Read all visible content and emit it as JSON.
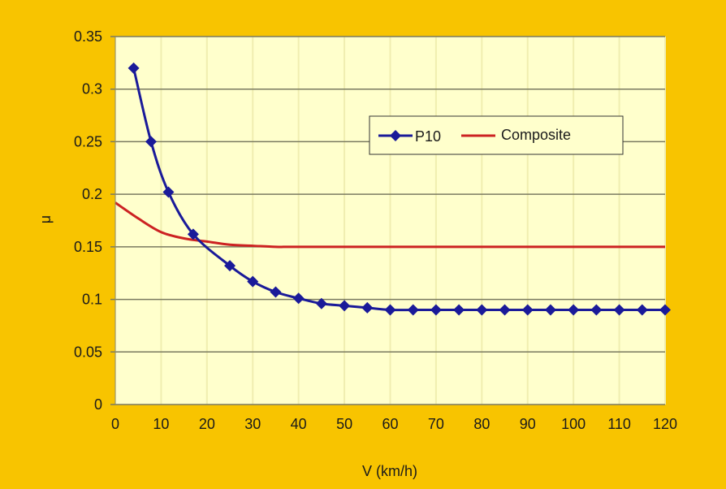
{
  "chart_data": {
    "type": "line",
    "title": "",
    "xlabel": "V (km/h)",
    "ylabel": "μ",
    "xlim": [
      0,
      120
    ],
    "ylim": [
      0,
      0.35
    ],
    "xticks": [
      0,
      10,
      20,
      30,
      40,
      50,
      60,
      70,
      80,
      90,
      100,
      110,
      120
    ],
    "yticks": [
      "0",
      "0.05",
      "0.1",
      "0.15",
      "0.2",
      "0.25",
      "0.3",
      "0.35"
    ],
    "grid": true,
    "legend_position": "top-right",
    "colors": {
      "background": "#f8c400",
      "plot": "#ffffcc",
      "grid": "#7a7a60"
    },
    "series": [
      {
        "name": "P10",
        "color": "#1a1a99",
        "marker": "diamond",
        "x": [
          4,
          7.8,
          11.6,
          17,
          25,
          30,
          35,
          40,
          45,
          50,
          55,
          60,
          65,
          70,
          75,
          80,
          85,
          90,
          95,
          100,
          105,
          110,
          115,
          120
        ],
        "y": [
          0.32,
          0.25,
          0.202,
          0.162,
          0.132,
          0.117,
          0.107,
          0.101,
          0.096,
          0.094,
          0.092,
          0.09,
          0.09,
          0.09,
          0.09,
          0.09,
          0.09,
          0.09,
          0.09,
          0.09,
          0.09,
          0.09,
          0.09,
          0.09
        ]
      },
      {
        "name": "Composite",
        "color": "#cc2222",
        "marker": "none",
        "x": [
          0,
          5,
          10,
          15,
          20,
          25,
          30,
          35,
          40,
          60,
          80,
          100,
          120
        ],
        "y": [
          0.192,
          0.177,
          0.164,
          0.158,
          0.155,
          0.152,
          0.151,
          0.15,
          0.15,
          0.15,
          0.15,
          0.15,
          0.15
        ]
      }
    ]
  }
}
